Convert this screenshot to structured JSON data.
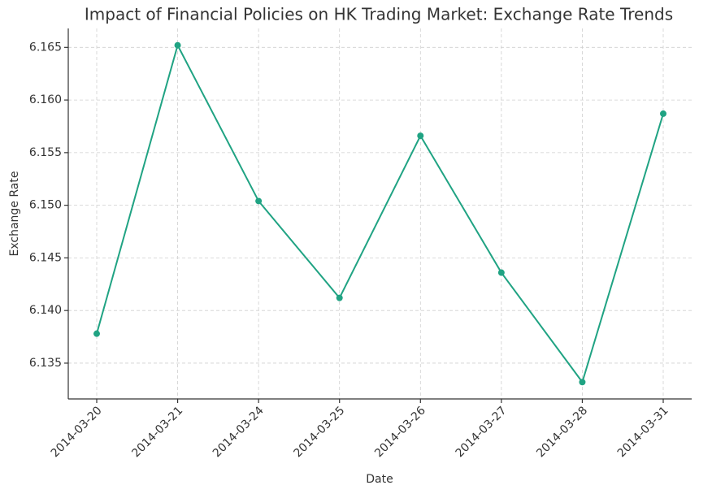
{
  "chart_data": {
    "type": "line",
    "title": "Impact of Financial Policies on HK Trading Market: Exchange Rate Trends",
    "x_label": "Date",
    "y_label": "Exchange Rate",
    "categories": [
      "2014-03-20",
      "2014-03-21",
      "2014-03-24",
      "2014-03-25",
      "2014-03-26",
      "2014-03-27",
      "2014-03-28",
      "2014-03-31"
    ],
    "series": [
      {
        "name": "Exchange Rate",
        "color": "#20a383",
        "values": [
          6.1378,
          6.1652,
          6.1504,
          6.1412,
          6.1566,
          6.1436,
          6.1332,
          6.1587
        ]
      }
    ],
    "ylim": [
      6.1316,
      6.1668
    ],
    "yticks": [
      6.135,
      {
        "value": 6.14,
        "label": "6.140"
      },
      6.145,
      {
        "value": 6.15,
        "label": "6.150"
      },
      6.155,
      {
        "value": 6.16,
        "label": "6.160"
      },
      6.165
    ],
    "grid": true
  }
}
